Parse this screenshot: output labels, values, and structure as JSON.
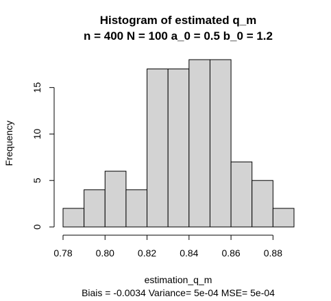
{
  "chart_data": {
    "type": "bar",
    "title": "Histogram of estimated q_m",
    "subtitle": "n = 400  N = 100  a_0 = 0.5  b_0 = 1.2",
    "xlabel": "estimation_q_m",
    "xlabel2": "Biais = -0.0034  Variance= 5e-04  MSE= 5e-04",
    "ylabel": "Frequency",
    "bin_edges": [
      0.78,
      0.79,
      0.8,
      0.81,
      0.82,
      0.83,
      0.84,
      0.85,
      0.86,
      0.87,
      0.88,
      0.89
    ],
    "values": [
      2,
      4,
      6,
      4,
      17,
      17,
      18,
      18,
      7,
      5,
      2
    ],
    "xlim": [
      0.78,
      0.89
    ],
    "ylim": [
      0,
      18
    ],
    "x_ticks": [
      0.78,
      0.8,
      0.82,
      0.84,
      0.86,
      0.88
    ],
    "x_tick_labels": [
      "0.78",
      "0.80",
      "0.82",
      "0.84",
      "0.86",
      "0.88"
    ],
    "y_ticks": [
      0,
      5,
      10,
      15
    ],
    "y_tick_labels": [
      "0",
      "5",
      "10",
      "15"
    ],
    "bar_color": "#d3d3d3",
    "grid": false
  }
}
